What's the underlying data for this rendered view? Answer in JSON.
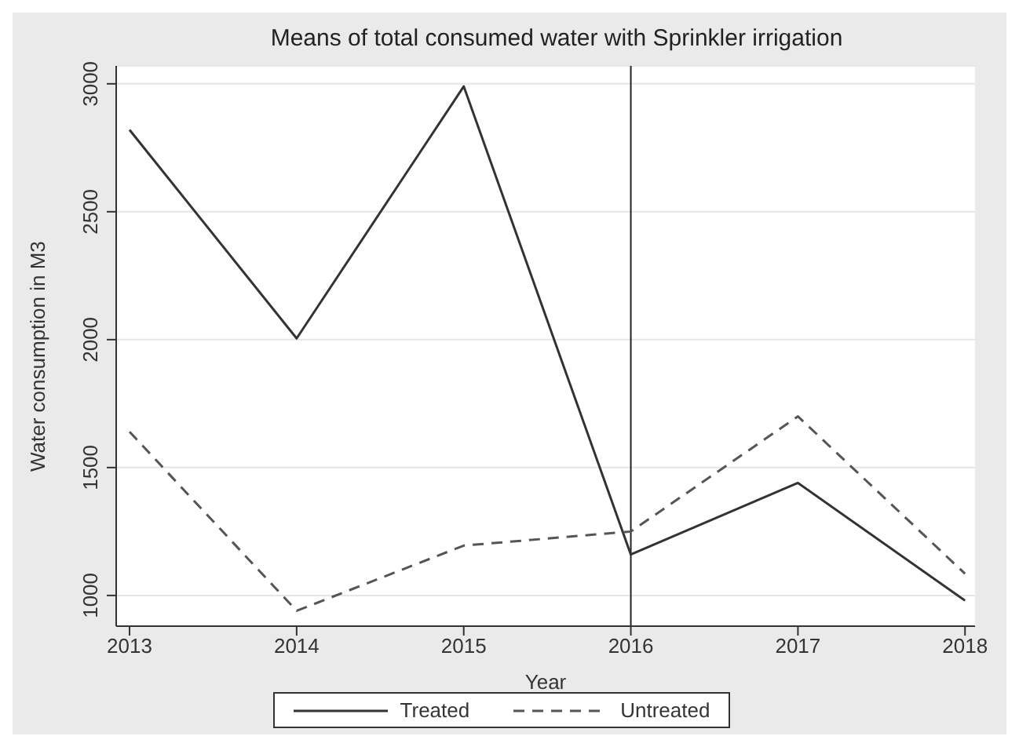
{
  "chart_data": {
    "type": "line",
    "title": "Means of total consumed water with Sprinkler irrigation",
    "xlabel": "Year",
    "ylabel": "Water consumption in M3",
    "x": [
      2013,
      2014,
      2015,
      2016,
      2017,
      2018
    ],
    "series": [
      {
        "name": "Treated",
        "color": "#333333",
        "line_style": "solid",
        "values": [
          2820,
          2005,
          2990,
          1160,
          1440,
          980
        ]
      },
      {
        "name": "Untreated",
        "color": "#555555",
        "line_style": "dashed",
        "values": [
          1640,
          940,
          1195,
          1250,
          1700,
          1085
        ]
      }
    ],
    "xlim": [
      2012.92,
      2018.06
    ],
    "xticks": [
      2013,
      2014,
      2015,
      2016,
      2017,
      2018
    ],
    "ylim": [
      880,
      3070
    ],
    "yticks": [
      1000,
      1500,
      2000,
      2500,
      3000
    ],
    "ref_lines": [
      {
        "axis": "x",
        "value": 2016,
        "color": "#222222"
      }
    ],
    "grid": "y",
    "legend": "bottom",
    "marker": "none"
  }
}
